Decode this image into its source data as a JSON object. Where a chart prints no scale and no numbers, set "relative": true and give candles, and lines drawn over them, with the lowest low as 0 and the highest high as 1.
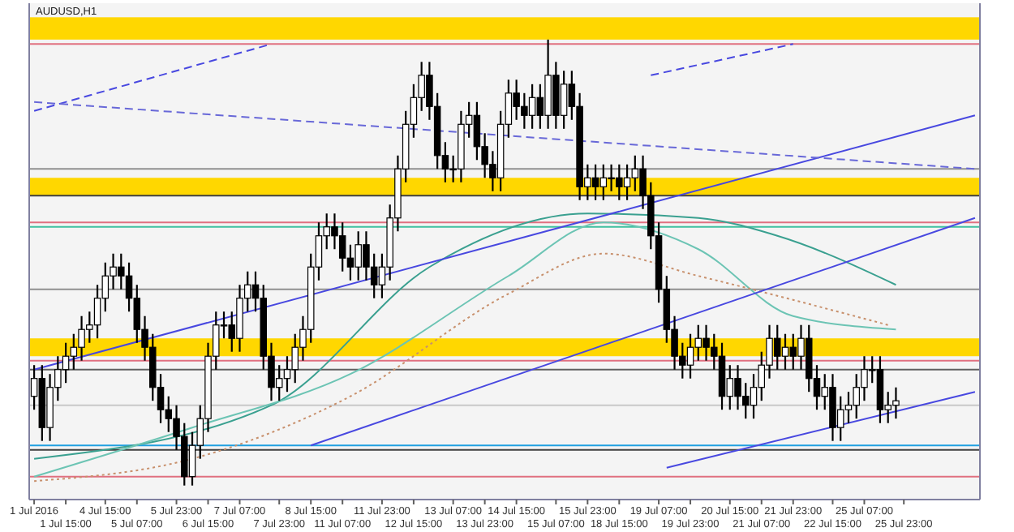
{
  "chart_data": {
    "type": "candlestick",
    "title": "AUDUSD,H1",
    "relative": true,
    "categories": [
      "1 Jul 2016",
      null,
      null,
      null,
      "1 Jul 15:00",
      null,
      null,
      null,
      null,
      "4 Jul 15:00",
      null,
      null,
      null,
      "5 Jul 07:00",
      null,
      null,
      null,
      null,
      "5 Jul 23:00",
      null,
      null,
      null,
      "6 Jul 15:00",
      null,
      null,
      null,
      "7 Jul 07:00",
      null,
      null,
      null,
      null,
      "7 Jul 23:00",
      null,
      null,
      null,
      "8 Jul 15:00",
      null,
      null,
      null,
      "11 Jul 07:00",
      null,
      null,
      null,
      null,
      "11 Jul 23:00",
      null,
      null,
      null,
      "12 Jul 15:00",
      null,
      null,
      null,
      null,
      "13 Jul 07:00",
      null,
      null,
      null,
      "13 Jul 23:00",
      null,
      null,
      null,
      "14 Jul 15:00",
      null,
      null,
      null,
      null,
      "15 Jul 07:00",
      null,
      null,
      null,
      "15 Jul 23:00",
      null,
      null,
      null,
      "18 Jul 15:00",
      null,
      null,
      null,
      null,
      "19 Jul 07:00",
      null,
      null,
      null,
      "19 Jul 23:00",
      null,
      null,
      null,
      null,
      "20 Jul 15:00",
      null,
      null,
      null,
      "21 Jul 07:00",
      null,
      null,
      null,
      "21 Jul 23:00",
      null,
      null,
      null,
      null,
      "22 Jul 15:00",
      null,
      null,
      null,
      "25 Jul 07:00",
      null,
      null,
      null,
      null,
      "25 Jul 23:00",
      null,
      null,
      null,
      null,
      null,
      null,
      null,
      null,
      null
    ],
    "series": [
      {
        "type": "candlestick",
        "color": "#000000",
        "ohlc": [
          [
            0.2,
            0.27,
            0.17,
            0.24
          ],
          [
            0.24,
            0.27,
            0.1,
            0.13
          ],
          [
            0.13,
            0.25,
            0.1,
            0.22
          ],
          [
            0.22,
            0.29,
            0.19,
            0.26
          ],
          [
            0.26,
            0.32,
            0.23,
            0.29
          ],
          [
            0.29,
            0.34,
            0.26,
            0.31
          ],
          [
            0.31,
            0.38,
            0.28,
            0.35
          ],
          [
            0.35,
            0.39,
            0.32,
            0.36
          ],
          [
            0.36,
            0.45,
            0.33,
            0.42
          ],
          [
            0.42,
            0.5,
            0.39,
            0.47
          ],
          [
            0.47,
            0.52,
            0.44,
            0.49
          ],
          [
            0.49,
            0.52,
            0.44,
            0.47
          ],
          [
            0.47,
            0.5,
            0.39,
            0.42
          ],
          [
            0.42,
            0.45,
            0.32,
            0.35
          ],
          [
            0.35,
            0.38,
            0.28,
            0.31
          ],
          [
            0.31,
            0.34,
            0.19,
            0.22
          ],
          [
            0.22,
            0.25,
            0.14,
            0.17
          ],
          [
            0.17,
            0.2,
            0.12,
            0.15
          ],
          [
            0.15,
            0.18,
            0.08,
            0.11
          ],
          [
            0.11,
            0.14,
            0,
            0.02
          ],
          [
            0.02,
            0.12,
            0,
            0.09
          ],
          [
            0.09,
            0.18,
            0.06,
            0.15
          ],
          [
            0.15,
            0.32,
            0.12,
            0.29
          ],
          [
            0.29,
            0.39,
            0.26,
            0.36
          ],
          [
            0.36,
            0.39,
            0.33,
            0.36
          ],
          [
            0.36,
            0.39,
            0.3,
            0.33
          ],
          [
            0.33,
            0.45,
            0.3,
            0.42
          ],
          [
            0.42,
            0.48,
            0.39,
            0.45
          ],
          [
            0.45,
            0.48,
            0.39,
            0.42
          ],
          [
            0.42,
            0.45,
            0.26,
            0.29
          ],
          [
            0.29,
            0.32,
            0.19,
            0.22
          ],
          [
            0.22,
            0.27,
            0.19,
            0.24
          ],
          [
            0.24,
            0.29,
            0.21,
            0.26
          ],
          [
            0.26,
            0.34,
            0.23,
            0.31
          ],
          [
            0.31,
            0.38,
            0.28,
            0.35
          ],
          [
            0.35,
            0.52,
            0.32,
            0.49
          ],
          [
            0.49,
            0.59,
            0.46,
            0.56
          ],
          [
            0.56,
            0.61,
            0.53,
            0.58
          ],
          [
            0.58,
            0.61,
            0.53,
            0.56
          ],
          [
            0.56,
            0.59,
            0.48,
            0.51
          ],
          [
            0.51,
            0.54,
            0.46,
            0.49
          ],
          [
            0.49,
            0.57,
            0.46,
            0.54
          ],
          [
            0.54,
            0.57,
            0.46,
            0.49
          ],
          [
            0.49,
            0.52,
            0.42,
            0.45
          ],
          [
            0.45,
            0.52,
            0.42,
            0.49
          ],
          [
            0.49,
            0.63,
            0.46,
            0.6
          ],
          [
            0.6,
            0.74,
            0.57,
            0.71
          ],
          [
            0.71,
            0.84,
            0.68,
            0.81
          ],
          [
            0.81,
            0.9,
            0.78,
            0.87
          ],
          [
            0.87,
            0.95,
            0.84,
            0.92
          ],
          [
            0.92,
            0.95,
            0.82,
            0.85
          ],
          [
            0.85,
            0.88,
            0.71,
            0.74
          ],
          [
            0.74,
            0.77,
            0.68,
            0.71
          ],
          [
            0.71,
            0.74,
            0.68,
            0.71
          ],
          [
            0.71,
            0.84,
            0.68,
            0.81
          ],
          [
            0.81,
            0.86,
            0.78,
            0.83
          ],
          [
            0.83,
            0.86,
            0.73,
            0.76
          ],
          [
            0.76,
            0.79,
            0.69,
            0.72
          ],
          [
            0.72,
            0.75,
            0.66,
            0.69
          ],
          [
            0.69,
            0.84,
            0.66,
            0.81
          ],
          [
            0.81,
            0.91,
            0.78,
            0.88
          ],
          [
            0.88,
            0.91,
            0.82,
            0.85
          ],
          [
            0.85,
            0.88,
            0.8,
            0.83
          ],
          [
            0.83,
            0.9,
            0.8,
            0.87
          ],
          [
            0.87,
            0.9,
            0.8,
            0.83
          ],
          [
            0.83,
            1,
            0.8,
            0.92
          ],
          [
            0.92,
            0.95,
            0.8,
            0.83
          ],
          [
            0.83,
            0.93,
            0.8,
            0.9
          ],
          [
            0.9,
            0.93,
            0.82,
            0.85
          ],
          [
            0.85,
            0.88,
            0.64,
            0.67
          ],
          [
            0.67,
            0.72,
            0.64,
            0.69
          ],
          [
            0.69,
            0.72,
            0.64,
            0.67
          ],
          [
            0.67,
            0.72,
            0.64,
            0.69
          ],
          [
            0.69,
            0.72,
            0.66,
            0.69
          ],
          [
            0.69,
            0.72,
            0.64,
            0.67
          ],
          [
            0.67,
            0.72,
            0.64,
            0.69
          ],
          [
            0.69,
            0.74,
            0.66,
            0.71
          ],
          [
            0.71,
            0.74,
            0.62,
            0.65
          ],
          [
            0.65,
            0.68,
            0.53,
            0.56
          ],
          [
            0.56,
            0.59,
            0.41,
            0.44
          ],
          [
            0.44,
            0.47,
            0.32,
            0.35
          ],
          [
            0.35,
            0.38,
            0.26,
            0.29
          ],
          [
            0.29,
            0.32,
            0.24,
            0.27
          ],
          [
            0.27,
            0.34,
            0.24,
            0.31
          ],
          [
            0.31,
            0.36,
            0.28,
            0.33
          ],
          [
            0.33,
            0.36,
            0.28,
            0.31
          ],
          [
            0.31,
            0.34,
            0.26,
            0.29
          ],
          [
            0.29,
            0.32,
            0.17,
            0.2
          ],
          [
            0.2,
            0.27,
            0.17,
            0.24
          ],
          [
            0.24,
            0.27,
            0.17,
            0.2
          ],
          [
            0.2,
            0.23,
            0.15,
            0.18
          ],
          [
            0.18,
            0.25,
            0.15,
            0.22
          ],
          [
            0.22,
            0.3,
            0.19,
            0.27
          ],
          [
            0.27,
            0.36,
            0.24,
            0.33
          ],
          [
            0.33,
            0.36,
            0.26,
            0.29
          ],
          [
            0.29,
            0.34,
            0.26,
            0.31
          ],
          [
            0.31,
            0.34,
            0.26,
            0.29
          ],
          [
            0.29,
            0.36,
            0.26,
            0.33
          ],
          [
            0.33,
            0.36,
            0.21,
            0.24
          ],
          [
            0.24,
            0.27,
            0.17,
            0.2
          ],
          [
            0.2,
            0.25,
            0.17,
            0.22
          ],
          [
            0.22,
            0.25,
            0.1,
            0.13
          ],
          [
            0.13,
            0.2,
            0.1,
            0.17
          ],
          [
            0.17,
            0.21,
            0.14,
            0.18
          ],
          [
            0.18,
            0.25,
            0.15,
            0.22
          ],
          [
            0.22,
            0.29,
            0.19,
            0.26
          ],
          [
            0.26,
            0.29,
            0.23,
            0.26
          ],
          [
            0.26,
            0.29,
            0.14,
            0.17
          ],
          [
            0.17,
            0.21,
            0.14,
            0.18
          ],
          [
            0.18,
            0.22,
            0.15,
            0.19
          ],
          null,
          null,
          null,
          null,
          null,
          null,
          null,
          null,
          null,
          null
        ]
      },
      {
        "type": "line",
        "color": "#3aa090",
        "line_style": "solid",
        "values": [
          0.06,
          null,
          null,
          null,
          null,
          null,
          null,
          null,
          null,
          null,
          null,
          null,
          null,
          null,
          null,
          null,
          null,
          null,
          null,
          null,
          null,
          null,
          null,
          null,
          null,
          null,
          null,
          null,
          null,
          null,
          0.18,
          null,
          null,
          null,
          null,
          null,
          null,
          null,
          null,
          null,
          null,
          null,
          null,
          null,
          null,
          null,
          null,
          null,
          null,
          null,
          0.49,
          null,
          null,
          null,
          null,
          null,
          null,
          null,
          null,
          null,
          null,
          null,
          null,
          null,
          null,
          null,
          null,
          null,
          null,
          null,
          0.61,
          null,
          null,
          null,
          null,
          null,
          null,
          null,
          null,
          null,
          null,
          null,
          null,
          null,
          0.6,
          null,
          null,
          null,
          null,
          null,
          null,
          null,
          null,
          null,
          0.56,
          null,
          null,
          null,
          null,
          null,
          null,
          null,
          null,
          null,
          null,
          null,
          null,
          null,
          null,
          0.45,
          null,
          null,
          null,
          null,
          null,
          null,
          null,
          null,
          null,
          null
        ]
      },
      {
        "type": "line",
        "color": "#6cc4b4",
        "line_style": "solid",
        "values": [
          0.02,
          null,
          null,
          null,
          null,
          null,
          null,
          null,
          null,
          null,
          null,
          null,
          null,
          null,
          null,
          null,
          null,
          null,
          null,
          null,
          0.13,
          null,
          null,
          null,
          null,
          null,
          null,
          null,
          null,
          null,
          null,
          null,
          null,
          null,
          null,
          null,
          null,
          null,
          null,
          null,
          0.25,
          null,
          null,
          null,
          null,
          null,
          null,
          null,
          null,
          null,
          null,
          null,
          null,
          null,
          null,
          null,
          null,
          null,
          null,
          null,
          0.47,
          null,
          null,
          null,
          null,
          null,
          null,
          null,
          null,
          null,
          null,
          null,
          0.59,
          null,
          null,
          null,
          null,
          null,
          null,
          null,
          null,
          null,
          null,
          null,
          0.53,
          null,
          null,
          null,
          null,
          null,
          null,
          null,
          null,
          null,
          null,
          null,
          0.38,
          null,
          null,
          null,
          null,
          null,
          null,
          null,
          null,
          null,
          null,
          null,
          null,
          0.35,
          null,
          null,
          null,
          null,
          null,
          null,
          null,
          null,
          null,
          null
        ]
      },
      {
        "type": "line",
        "color": "#c8906c",
        "line_style": "dotted",
        "values": [
          0.01,
          null,
          null,
          null,
          null,
          null,
          null,
          null,
          null,
          null,
          null,
          null,
          null,
          null,
          null,
          null,
          null,
          null,
          null,
          null,
          0.06,
          null,
          null,
          null,
          null,
          null,
          null,
          null,
          null,
          null,
          null,
          null,
          null,
          null,
          null,
          null,
          null,
          null,
          null,
          null,
          0.2,
          null,
          null,
          null,
          null,
          null,
          null,
          null,
          null,
          null,
          null,
          null,
          null,
          null,
          null,
          null,
          null,
          null,
          null,
          null,
          0.43,
          null,
          null,
          null,
          null,
          null,
          null,
          null,
          null,
          null,
          null,
          null,
          0.52,
          null,
          null,
          null,
          null,
          null,
          null,
          null,
          null,
          null,
          null,
          null,
          0.47,
          null,
          null,
          null,
          null,
          null,
          null,
          null,
          null,
          null,
          null,
          null,
          null,
          null,
          null,
          null,
          null,
          null,
          null,
          null,
          null,
          null,
          null,
          null,
          0.36,
          null,
          null,
          null,
          null,
          null,
          null,
          null,
          null,
          null,
          null,
          null
        ]
      },
      {
        "type": "line",
        "color": "#4848e0",
        "line_style": "solid",
        "values": [
          0.26,
          null,
          null,
          null,
          null,
          null,
          null,
          null,
          null,
          null,
          null,
          null,
          null,
          null,
          null,
          null,
          null,
          null,
          null,
          null,
          null,
          null,
          null,
          null,
          null,
          null,
          null,
          null,
          null,
          null,
          null,
          null,
          null,
          null,
          null,
          null,
          null,
          null,
          null,
          null,
          null,
          null,
          null,
          null,
          null,
          null,
          null,
          null,
          null,
          null,
          null,
          null,
          null,
          null,
          null,
          null,
          null,
          null,
          null,
          null,
          null,
          null,
          null,
          null,
          null,
          null,
          null,
          null,
          null,
          null,
          null,
          null,
          null,
          null,
          null,
          null,
          null,
          null,
          null,
          null,
          null,
          null,
          null,
          null,
          null,
          null,
          null,
          null,
          null,
          null,
          null,
          null,
          null,
          null,
          null,
          null,
          null,
          null,
          null,
          null,
          null,
          null,
          null,
          null,
          null,
          null,
          null,
          null,
          null,
          null,
          null,
          null,
          null,
          null,
          null,
          null,
          null,
          null,
          null,
          0.83
        ]
      },
      {
        "type": "line",
        "color": "#4848e0",
        "line_style": "solid",
        "values": [
          null,
          null,
          null,
          null,
          null,
          null,
          null,
          null,
          null,
          null,
          null,
          null,
          null,
          null,
          null,
          null,
          null,
          null,
          null,
          null,
          null,
          null,
          null,
          null,
          null,
          null,
          null,
          null,
          null,
          null,
          null,
          null,
          null,
          null,
          null,
          0.09,
          null,
          null,
          null,
          null,
          null,
          null,
          null,
          null,
          null,
          null,
          null,
          null,
          null,
          null,
          null,
          null,
          null,
          null,
          null,
          null,
          null,
          null,
          null,
          null,
          null,
          null,
          null,
          null,
          null,
          null,
          null,
          null,
          null,
          null,
          null,
          null,
          null,
          null,
          null,
          null,
          null,
          null,
          null,
          null,
          null,
          null,
          null,
          null,
          null,
          null,
          null,
          null,
          null,
          null,
          null,
          null,
          null,
          null,
          null,
          null,
          null,
          null,
          null,
          null,
          null,
          null,
          null,
          null,
          null,
          null,
          null,
          null,
          null,
          null,
          null,
          null,
          null,
          null,
          null,
          null,
          null,
          null,
          null,
          0.6
        ]
      },
      {
        "type": "line",
        "color": "#4848e0",
        "line_style": "solid",
        "values": [
          null,
          null,
          null,
          null,
          null,
          null,
          null,
          null,
          null,
          null,
          null,
          null,
          null,
          null,
          null,
          null,
          null,
          null,
          null,
          null,
          null,
          null,
          null,
          null,
          null,
          null,
          null,
          null,
          null,
          null,
          null,
          null,
          null,
          null,
          null,
          null,
          null,
          null,
          null,
          null,
          null,
          null,
          null,
          null,
          null,
          null,
          null,
          null,
          null,
          null,
          null,
          null,
          null,
          null,
          null,
          null,
          null,
          null,
          null,
          null,
          null,
          null,
          null,
          null,
          null,
          null,
          null,
          null,
          null,
          null,
          null,
          null,
          null,
          null,
          null,
          null,
          null,
          null,
          null,
          null,
          0.04,
          null,
          null,
          null,
          null,
          null,
          null,
          null,
          null,
          null,
          null,
          null,
          null,
          null,
          null,
          null,
          null,
          null,
          null,
          null,
          null,
          null,
          null,
          null,
          null,
          null,
          null,
          null,
          null,
          null,
          null,
          null,
          null,
          null,
          null,
          null,
          null,
          null,
          null,
          0.21
        ]
      },
      {
        "type": "line",
        "color": "#4848e0",
        "line_style": "dashed",
        "values": [
          0.84,
          null,
          null,
          null,
          null,
          null,
          null,
          null,
          null,
          null,
          null,
          null,
          null,
          null,
          null,
          null,
          null,
          null,
          null,
          null,
          null,
          null,
          null,
          null,
          null,
          null,
          null,
          null,
          null,
          null,
          0.99,
          null,
          null,
          null,
          null,
          null,
          null,
          null,
          null,
          null,
          null,
          null,
          null,
          null,
          null,
          null,
          null,
          null,
          null,
          null,
          null,
          null,
          null,
          null,
          null,
          null,
          null,
          null,
          null,
          null,
          null,
          null,
          null,
          null,
          null,
          null,
          null,
          null,
          null,
          null,
          null,
          null,
          null,
          null,
          null,
          null,
          null,
          null,
          null,
          null,
          null,
          null,
          null,
          null,
          null,
          null,
          null,
          null,
          null,
          null,
          null,
          null,
          null,
          null,
          null,
          null,
          null,
          null,
          null,
          null,
          null,
          null,
          null,
          null,
          null,
          null,
          null,
          null,
          null,
          null,
          null,
          null,
          null,
          null,
          null,
          null,
          null,
          null,
          null,
          null
        ]
      },
      {
        "type": "line",
        "color": "#4848e0",
        "line_style": "dashed",
        "values": [
          null,
          null,
          null,
          null,
          null,
          null,
          null,
          null,
          null,
          null,
          null,
          null,
          null,
          null,
          null,
          null,
          null,
          null,
          null,
          null,
          null,
          null,
          null,
          null,
          null,
          null,
          null,
          null,
          null,
          null,
          null,
          null,
          null,
          null,
          null,
          null,
          null,
          null,
          null,
          null,
          null,
          null,
          null,
          null,
          null,
          null,
          null,
          null,
          null,
          null,
          null,
          null,
          null,
          null,
          null,
          null,
          null,
          null,
          null,
          null,
          null,
          null,
          null,
          null,
          null,
          null,
          null,
          null,
          null,
          null,
          null,
          null,
          null,
          null,
          null,
          null,
          null,
          null,
          0.92,
          null,
          null,
          null,
          null,
          null,
          null,
          null,
          null,
          null,
          null,
          null,
          null,
          null,
          null,
          null,
          null,
          null,
          0.99,
          null,
          null,
          null,
          null,
          null,
          null,
          null,
          null,
          null,
          null,
          null,
          null,
          null,
          null,
          null,
          null,
          null,
          null,
          null,
          null,
          null,
          null,
          null
        ]
      },
      {
        "type": "line",
        "color": "#6868d8",
        "line_style": "dashed",
        "values": [
          0.86,
          null,
          null,
          null,
          null,
          null,
          null,
          null,
          null,
          null,
          null,
          null,
          null,
          null,
          null,
          null,
          null,
          null,
          null,
          null,
          null,
          null,
          null,
          null,
          null,
          null,
          null,
          null,
          null,
          null,
          null,
          null,
          null,
          null,
          null,
          null,
          null,
          null,
          null,
          null,
          null,
          null,
          null,
          null,
          null,
          null,
          null,
          null,
          null,
          null,
          null,
          null,
          null,
          null,
          null,
          null,
          null,
          null,
          null,
          null,
          null,
          null,
          null,
          null,
          null,
          null,
          null,
          null,
          null,
          null,
          null,
          null,
          null,
          null,
          null,
          null,
          null,
          null,
          null,
          null,
          null,
          null,
          null,
          null,
          null,
          null,
          null,
          null,
          null,
          null,
          null,
          null,
          null,
          null,
          null,
          null,
          null,
          null,
          null,
          null,
          null,
          null,
          null,
          null,
          null,
          null,
          null,
          null,
          null,
          null,
          null,
          null,
          null,
          null,
          null,
          null,
          null,
          null,
          null,
          0.71
        ]
      }
    ],
    "bands": [
      {
        "axis": "y",
        "from": 1.0,
        "to": 1.05,
        "color": "#ffd700"
      },
      {
        "axis": "y",
        "from": 0.65,
        "to": 0.69,
        "color": "#ffd700"
      },
      {
        "axis": "y",
        "from": 0.29,
        "to": 0.33,
        "color": "#ffd700"
      }
    ],
    "ref_lines": [
      {
        "axis": "y",
        "value": 0.99,
        "color": "#e07080"
      },
      {
        "axis": "y",
        "value": 0.71,
        "color": "#909090"
      },
      {
        "axis": "y",
        "value": 0.65,
        "color": "#404040"
      },
      {
        "axis": "y",
        "value": 0.59,
        "color": "#e07080"
      },
      {
        "axis": "y",
        "value": 0.58,
        "color": "#40c0a0"
      },
      {
        "axis": "y",
        "value": 0.44,
        "color": "#909090"
      },
      {
        "axis": "y",
        "value": 0.28,
        "color": "#e07080"
      },
      {
        "axis": "y",
        "value": 0.26,
        "color": "#606060"
      },
      {
        "axis": "y",
        "value": 0.18,
        "color": "#c8c8c8"
      },
      {
        "axis": "y",
        "value": 0.09,
        "color": "#20a0e0"
      },
      {
        "axis": "y",
        "value": 0.08,
        "color": "#404040"
      },
      {
        "axis": "y",
        "value": 0.02,
        "color": "#e07080"
      }
    ]
  }
}
